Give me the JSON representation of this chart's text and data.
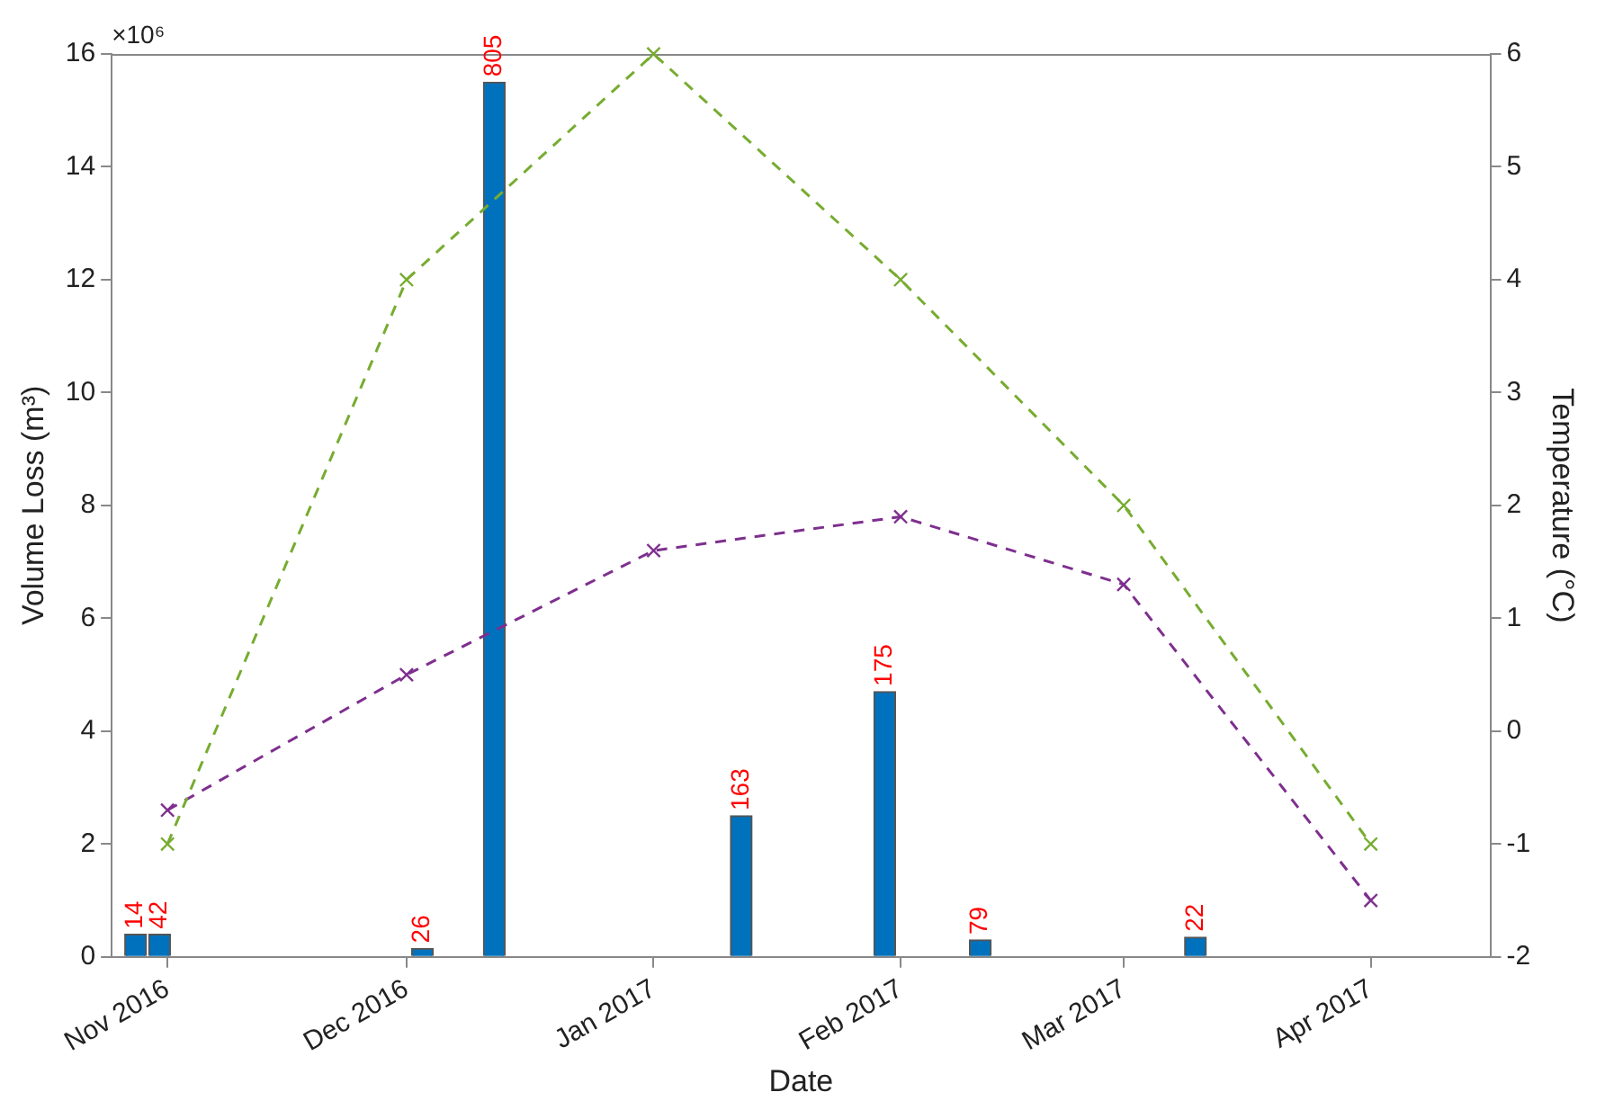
{
  "chart_data": {
    "type": "bar",
    "xlabel": "Date",
    "ylabel": "Volume Loss (m³)",
    "y2label": "Temperature (°C)",
    "annotations": [
      "×10⁶",
      {
        "text": "14",
        "x": "2016-10-28",
        "y": 0.4
      },
      {
        "text": "42",
        "x": "2016-10-31",
        "y": 0.4
      },
      {
        "text": "26",
        "x": "2016-12-03",
        "y": 0.15
      },
      {
        "text": "805",
        "x": "2016-12-12",
        "y": 15.5
      },
      {
        "text": "163",
        "x": "2017-01-12",
        "y": 2.5
      },
      {
        "text": "175",
        "x": "2017-01-30",
        "y": 4.7
      },
      {
        "text": "79",
        "x": "2017-02-11",
        "y": 0.3
      },
      {
        "text": "22",
        "x": "2017-03-10",
        "y": 0.35
      }
    ],
    "xlim": [
      "2016-10-25",
      "2017-04-16"
    ],
    "xticks": [
      {
        "value": "2016-11-01",
        "label": "Nov 2016"
      },
      {
        "value": "2016-12-01",
        "label": "Dec 2016"
      },
      {
        "value": "2017-01-01",
        "label": "Jan 2017"
      },
      {
        "value": "2017-02-01",
        "label": "Feb 2017"
      },
      {
        "value": "2017-03-01",
        "label": "Mar 2017"
      },
      {
        "value": "2017-04-01",
        "label": "Apr 2017"
      }
    ],
    "ylim": [
      0,
      16
    ],
    "yticks": [
      0,
      2,
      4,
      6,
      8,
      10,
      12,
      14,
      16
    ],
    "y2lim": [
      -2,
      6
    ],
    "y2ticks": [
      -2,
      -1,
      0,
      1,
      2,
      3,
      4,
      5,
      6
    ],
    "grid": false,
    "marker": "cross",
    "line_style": "dashed",
    "series": [
      {
        "color": "#0072bd",
        "x": [
          "2016-10-28",
          "2016-10-31",
          "2016-12-03",
          "2016-12-12",
          "2017-01-12",
          "2017-01-30",
          "2017-02-11",
          "2017-03-10"
        ],
        "values": [
          0.4,
          0.4,
          0.15,
          15.5,
          2.5,
          4.7,
          0.3,
          0.35
        ]
      },
      {
        "type": "line",
        "color": "#77ac30",
        "axis": "y2",
        "x": [
          "2016-11-01",
          "2016-12-01",
          "2017-01-01",
          "2017-02-01",
          "2017-03-01",
          "2017-04-01"
        ],
        "values": [
          -1,
          4,
          6,
          4,
          2,
          -1
        ]
      },
      {
        "type": "line",
        "color": "#7e2f8e",
        "axis": "y2",
        "x": [
          "2016-11-01",
          "2016-12-01",
          "2017-01-01",
          "2017-02-01",
          "2017-03-01",
          "2017-04-01"
        ],
        "values": [
          -0.7,
          0.5,
          1.6,
          1.9,
          1.3,
          -1.5
        ]
      }
    ]
  }
}
